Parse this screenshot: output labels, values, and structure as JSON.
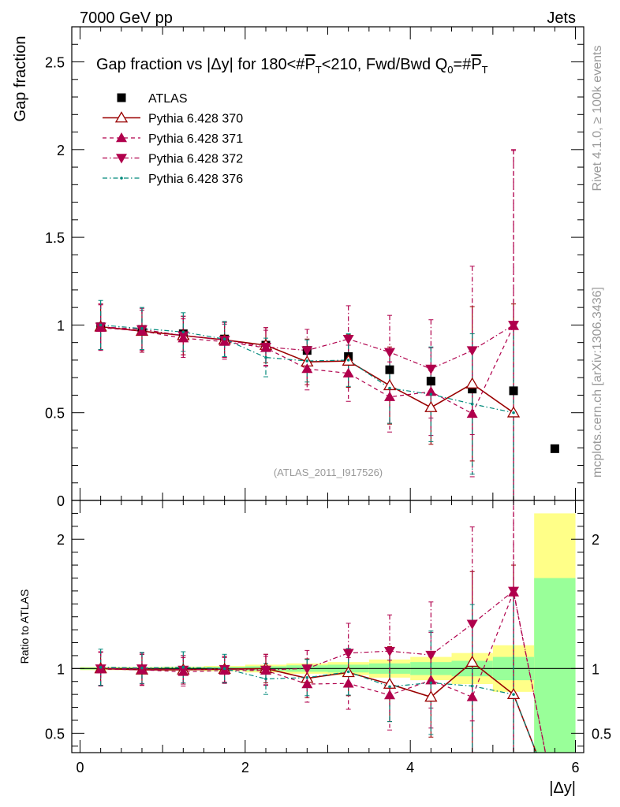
{
  "header": {
    "left": "7000 GeV pp",
    "right": "Jets"
  },
  "side_labels": {
    "rivet": "Rivet 4.1.0, ≥ 100k events",
    "mcplots": "mcplots.cern.ch [arXiv:1306.3436]"
  },
  "chart_data": [
    {
      "panel": "main",
      "type": "scatter",
      "title": "Gap fraction vs |Δy| for 180<#P̅T<210, Fwd/Bwd Q0=#P̅T",
      "title_parts": {
        "prefix": "Gap fraction vs |Δy| for 180<#",
        "p": "P",
        "t": "T",
        "mid": "<210, Fwd/Bwd Q",
        "zero": "0",
        "eq": "=#",
        "p2": "P",
        "t2": "T"
      },
      "ylabel": "Gap fraction",
      "xlabel": "|Δy|",
      "xlim": [
        -0.1,
        6.1
      ],
      "ylim": [
        0,
        2.7
      ],
      "yticks": [
        {
          "v": 0,
          "label": "0"
        },
        {
          "v": 0.5,
          "label": "0.5"
        },
        {
          "v": 1,
          "label": "1"
        },
        {
          "v": 1.5,
          "label": "1.5"
        },
        {
          "v": 2,
          "label": "2"
        },
        {
          "v": 2.5,
          "label": "2.5"
        }
      ],
      "watermark": "(ATLAS_2011_I917526)",
      "legend_position": "top-left",
      "x": [
        0.25,
        0.75,
        1.25,
        1.75,
        2.25,
        2.75,
        3.25,
        3.75,
        4.25,
        4.75,
        5.25,
        5.75
      ],
      "series": [
        {
          "name": "ATLAS",
          "style": "data",
          "color": "#000000",
          "values": [
            0.99,
            0.975,
            0.95,
            0.92,
            0.885,
            0.855,
            0.82,
            0.745,
            0.68,
            0.635,
            0.625,
            0.295
          ]
        },
        {
          "name": "Pythia 6.428 370",
          "style": "open-triangle-solid",
          "color": "#990000",
          "values": [
            0.99,
            0.965,
            0.94,
            0.915,
            0.885,
            0.79,
            0.795,
            0.655,
            0.53,
            0.665,
            0.5
          ],
          "errors": [
            0.13,
            0.12,
            0.11,
            0.1,
            0.1,
            0.13,
            0.15,
            0.22,
            0.21,
            0.44,
            0.62
          ]
        },
        {
          "name": "Pythia 6.428 371",
          "style": "filled-up-triangle-dashed",
          "color": "#b0004c",
          "values": [
            0.985,
            0.965,
            0.925,
            0.905,
            0.87,
            0.75,
            0.725,
            0.59,
            0.62,
            0.495,
            0.995
          ],
          "errors": [
            0.13,
            0.12,
            0.11,
            0.1,
            0.1,
            0.12,
            0.16,
            0.2,
            0.25,
            0.36,
            1.0
          ]
        },
        {
          "name": "Pythia 6.428 372",
          "style": "filled-down-triangle-dashdot",
          "color": "#b0004c",
          "values": [
            0.99,
            0.975,
            0.94,
            0.915,
            0.875,
            0.855,
            0.92,
            0.845,
            0.75,
            0.855,
            1.0
          ],
          "errors": [
            0.13,
            0.12,
            0.11,
            0.1,
            0.11,
            0.12,
            0.19,
            0.21,
            0.28,
            0.48,
            1.0
          ]
        },
        {
          "name": "Pythia 6.428 376",
          "style": "dot-dashdot",
          "color": "#00897b",
          "values": [
            1.0,
            0.98,
            0.96,
            0.92,
            0.815,
            0.795,
            0.8,
            0.64,
            0.605,
            0.55,
            0.5
          ],
          "errors": [
            0.14,
            0.12,
            0.11,
            0.1,
            0.11,
            0.12,
            0.15,
            0.2,
            0.27,
            0.4,
            0.5
          ]
        }
      ]
    },
    {
      "panel": "ratio",
      "type": "scatter",
      "ylabel": "Ratio to ATLAS",
      "xlabel": "|Δy|",
      "xlim": [
        -0.1,
        6.1
      ],
      "ylim": [
        0.35,
        2.3
      ],
      "yticks": [
        {
          "v": 0.5,
          "label": "0.5"
        },
        {
          "v": 1,
          "label": "1"
        },
        {
          "v": 2,
          "label": "2"
        }
      ],
      "xticks": [
        {
          "v": 0,
          "label": "0"
        },
        {
          "v": 2,
          "label": "2"
        },
        {
          "v": 4,
          "label": "4"
        },
        {
          "v": 6,
          "label": "6"
        }
      ],
      "bands": {
        "bin_edges": [
          0,
          0.5,
          1,
          1.5,
          2,
          2.5,
          3,
          3.5,
          4,
          4.5,
          5,
          5.5,
          6
        ],
        "green_halfwidth": [
          0.008,
          0.008,
          0.01,
          0.012,
          0.018,
          0.025,
          0.03,
          0.04,
          0.05,
          0.06,
          0.09,
          0.7
        ],
        "yellow_halfwidth": [
          0.012,
          0.012,
          0.015,
          0.02,
          0.03,
          0.04,
          0.05,
          0.07,
          0.09,
          0.12,
          0.18,
          1.2
        ]
      },
      "series": [
        {
          "name": "Pythia 6.428 370",
          "color": "#990000",
          "values": [
            1.0,
            0.99,
            0.99,
            0.995,
            1.0,
            0.925,
            0.97,
            0.88,
            0.78,
            1.05,
            0.8
          ],
          "errors": [
            0.13,
            0.12,
            0.11,
            0.1,
            0.11,
            0.15,
            0.18,
            0.29,
            0.31,
            0.7,
            1.0
          ]
        },
        {
          "name": "Pythia 6.428 371",
          "color": "#b0004c",
          "values": [
            0.995,
            0.99,
            0.975,
            0.985,
            0.985,
            0.88,
            0.885,
            0.795,
            0.91,
            0.78,
            1.59
          ],
          "errors": [
            0.13,
            0.12,
            0.11,
            0.1,
            0.11,
            0.14,
            0.2,
            0.27,
            0.37,
            0.57,
            1.6
          ]
        },
        {
          "name": "Pythia 6.428 372",
          "color": "#b0004c",
          "values": [
            1.0,
            1.0,
            0.99,
            0.995,
            0.99,
            1.0,
            1.12,
            1.135,
            1.105,
            1.345,
            1.6
          ],
          "errors": [
            0.13,
            0.12,
            0.11,
            0.1,
            0.12,
            0.14,
            0.23,
            0.28,
            0.41,
            0.75,
            1.6
          ]
        },
        {
          "name": "Pythia 6.428 376",
          "color": "#00897b",
          "values": [
            1.01,
            1.005,
            1.01,
            1.0,
            0.92,
            0.93,
            0.975,
            0.86,
            0.89,
            0.865,
            0.8
          ],
          "errors": [
            0.14,
            0.12,
            0.12,
            0.11,
            0.12,
            0.14,
            0.18,
            0.27,
            0.4,
            0.63,
            0.8
          ]
        }
      ]
    }
  ]
}
